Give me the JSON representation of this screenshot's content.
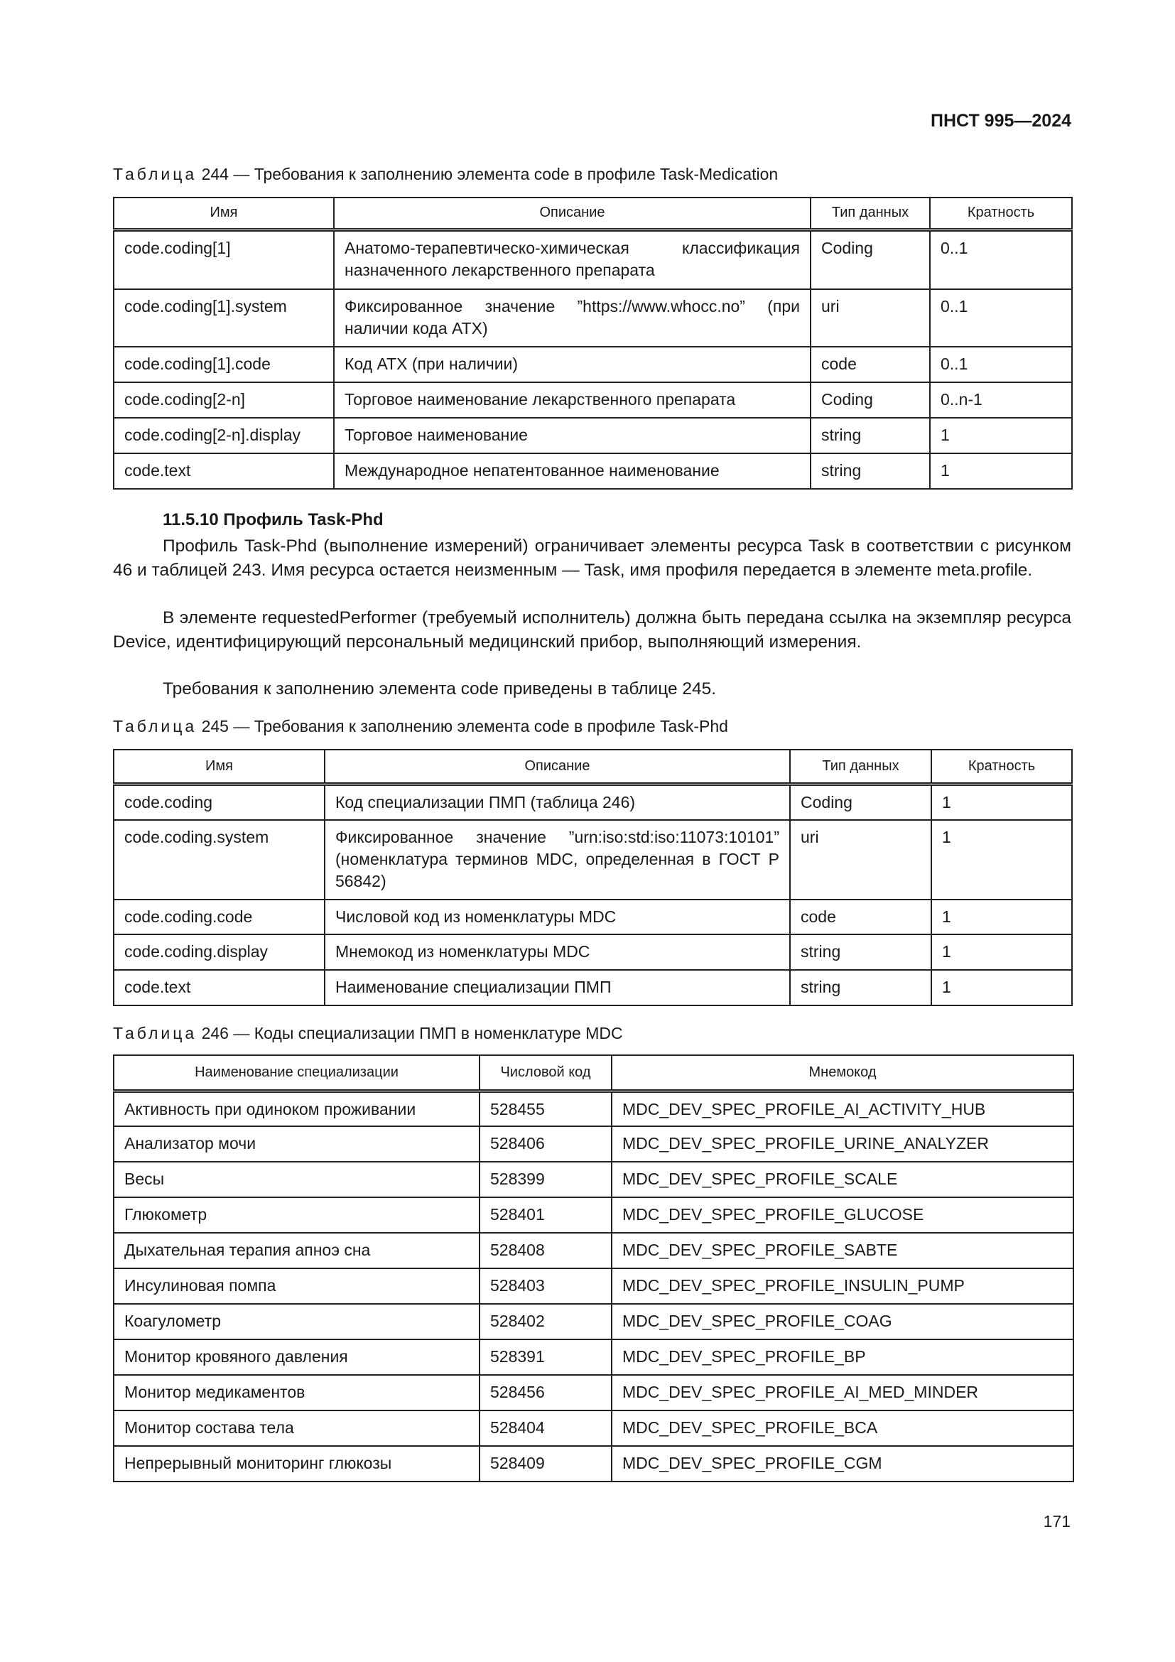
{
  "header": {
    "doc_code": "ПНСТ 995—2024"
  },
  "table244": {
    "caption_prefix": "Таблица",
    "caption_rest": " 244 — Требования к заполнению элемента code в профиле Task-Medication",
    "columns": [
      "Имя",
      "Описание",
      "Тип данных",
      "Кратность"
    ],
    "rows": [
      [
        "code.coding[1]",
        "Анатомо-терапевтическо-химическая классификация назначенного лекарственного препарата",
        "Coding",
        "0..1"
      ],
      [
        "code.coding[1].system",
        "Фиксированное значение ”https://www.whocc.no” (при наличии кода АТХ)",
        "uri",
        "0..1"
      ],
      [
        "code.coding[1].code",
        "Код АТХ (при наличии)",
        "code",
        "0..1"
      ],
      [
        "code.coding[2-n]",
        "Торговое наименование лекарственного препарата",
        "Coding",
        "0..n-1"
      ],
      [
        "code.coding[2-n].display",
        "Торговое наименование",
        "string",
        "1"
      ],
      [
        "code.text",
        "Международное непатентованное наименование",
        "string",
        "1"
      ]
    ]
  },
  "section": {
    "heading": "11.5.10 Профиль Task-Phd",
    "paragraphs": [
      "Профиль Task-Phd (выполнение измерений) ограничивает элементы ресурса Task в соответствии с рисунком 46 и таблицей 243. Имя ресурса остается неизменным — Task, имя профиля передается в элементе meta.profile.",
      "В элементе requestedPerformer (требуемый исполнитель) должна быть передана ссылка на экземпляр ресурса Device, идентифицирующий персональный медицинский прибор, выполняющий измерения.",
      "Требования к заполнению элемента code приведены в таблице 245."
    ]
  },
  "table245": {
    "caption_prefix": "Таблица",
    "caption_rest": " 245 — Требования к заполнению элемента code в профиле Task-Phd",
    "columns": [
      "Имя",
      "Описание",
      "Тип данных",
      "Кратность"
    ],
    "rows": [
      [
        "code.coding",
        "Код специализации ПМП (таблица 246)",
        "Coding",
        "1"
      ],
      [
        "code.coding.system",
        "Фиксированное значение ”urn:iso:std:iso:11073:10101” (номенклатура терминов MDC, определенная в ГОСТ Р 56842)",
        "uri",
        "1"
      ],
      [
        "code.coding.code",
        "Числовой код из номенклатуры MDC",
        "code",
        "1"
      ],
      [
        "code.coding.display",
        "Мнемокод из номенклатуры MDC",
        "string",
        "1"
      ],
      [
        "code.text",
        "Наименование специализации ПМП",
        "string",
        "1"
      ]
    ]
  },
  "table246": {
    "caption_prefix": "Таблица",
    "caption_rest": " 246 — Коды специализации ПМП в номенклатуре MDC",
    "columns": [
      "Наименование специализации",
      "Числовой код",
      "Мнемокод"
    ],
    "rows": [
      [
        "Активность при одиноком проживании",
        "528455",
        "MDC_DEV_SPEC_PROFILE_AI_ACTIVITY_HUB"
      ],
      [
        "Анализатор мочи",
        "528406",
        "MDC_DEV_SPEC_PROFILE_URINE_ANALYZER"
      ],
      [
        "Весы",
        "528399",
        "MDC_DEV_SPEC_PROFILE_SCALE"
      ],
      [
        "Глюкометр",
        "528401",
        "MDC_DEV_SPEC_PROFILE_GLUCOSE"
      ],
      [
        "Дыхательная терапия апноэ сна",
        "528408",
        "MDC_DEV_SPEC_PROFILE_SABTE"
      ],
      [
        "Инсулиновая помпа",
        "528403",
        "MDC_DEV_SPEC_PROFILE_INSULIN_PUMP"
      ],
      [
        "Коагулометр",
        "528402",
        "MDC_DEV_SPEC_PROFILE_COAG"
      ],
      [
        "Монитор кровяного давления",
        "528391",
        "MDC_DEV_SPEC_PROFILE_BP"
      ],
      [
        "Монитор медикаментов",
        "528456",
        "MDC_DEV_SPEC_PROFILE_AI_MED_MINDER"
      ],
      [
        "Монитор состава тела",
        "528404",
        "MDC_DEV_SPEC_PROFILE_BCA"
      ],
      [
        "Непрерывный мониторинг глюкозы",
        "528409",
        "MDC_DEV_SPEC_PROFILE_CGM"
      ]
    ]
  },
  "footer": {
    "page_number": "171"
  }
}
